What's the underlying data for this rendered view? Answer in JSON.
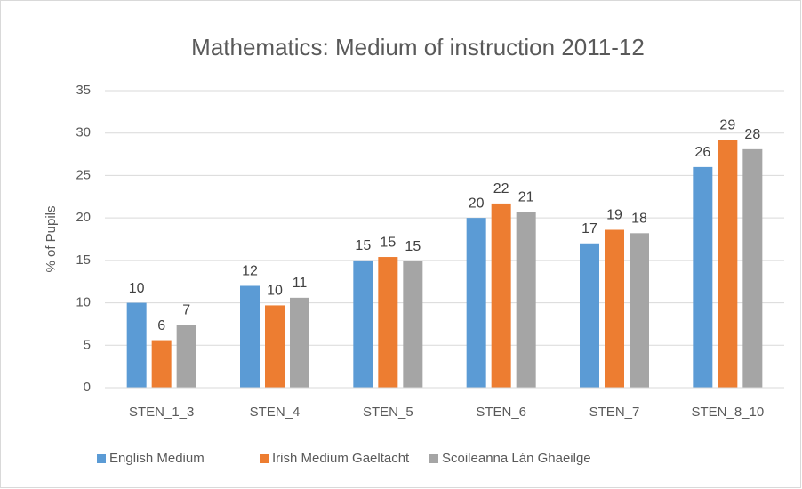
{
  "chart_data": {
    "type": "bar",
    "title": "Mathematics: Medium of instruction 2011-12",
    "y_label": "% of Pupils",
    "categories": [
      "STEN_1_3",
      "STEN_4",
      "STEN_5",
      "STEN_6",
      "STEN_7",
      "STEN_8_10"
    ],
    "series": [
      {
        "name": "English Medium",
        "color": "#5b9bd5",
        "values": [
          10,
          12,
          15,
          20,
          17,
          26
        ]
      },
      {
        "name": "Irish Medium Gaeltacht",
        "color": "#ed7d31",
        "values": [
          5.6,
          9.7,
          15.4,
          21.7,
          18.6,
          29.2
        ],
        "value_labels": [
          "6",
          "10",
          "15",
          "22",
          "19",
          "29"
        ]
      },
      {
        "name": "Scoileanna Lán Ghaeilge",
        "color": "#a5a5a5",
        "values": [
          7.4,
          10.6,
          14.9,
          20.7,
          18.2,
          28.1
        ],
        "value_labels": [
          "7",
          "11",
          "15",
          "21",
          "18",
          "28"
        ]
      }
    ],
    "ylim": [
      0,
      35
    ],
    "yticks": [
      0,
      5,
      10,
      15,
      20,
      25,
      30,
      35
    ],
    "grid": true,
    "legend": "bottom"
  }
}
